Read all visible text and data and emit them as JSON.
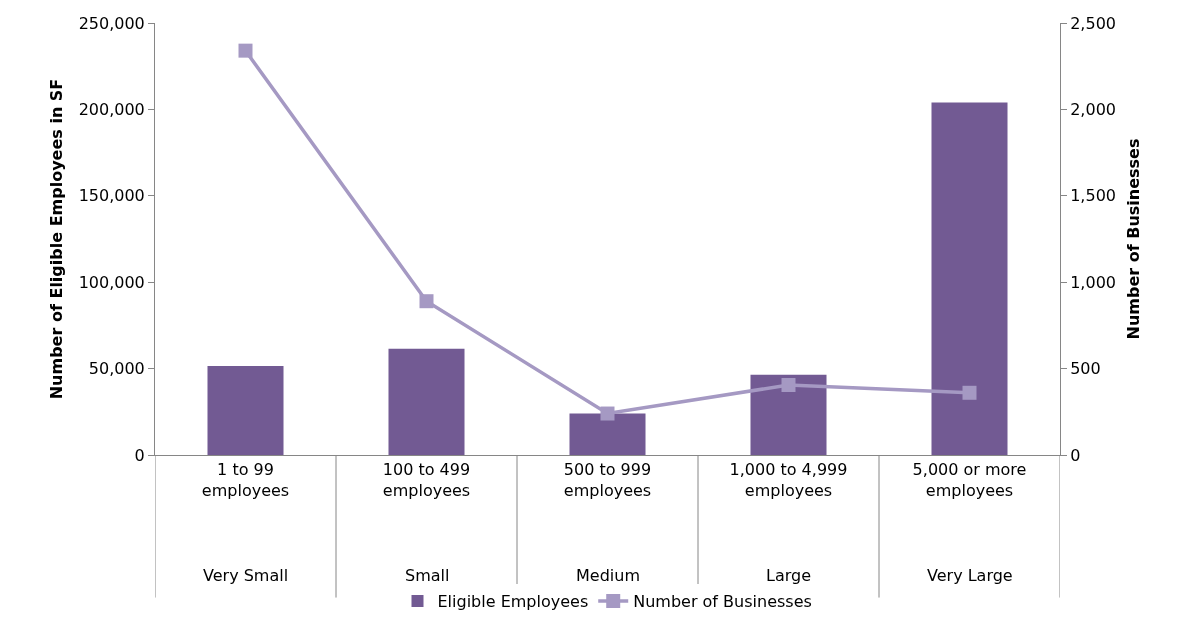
{
  "chart_data": {
    "type": "bar",
    "ylabel": "Number of Eligible Employees in SF",
    "y2label": "Number of Businesses",
    "categories": [
      "1 to 99 employees",
      "100 to 499 employees",
      "500 to 999 employees",
      "1,000 to 4,999 employees",
      "5,000 or more employees"
    ],
    "series": [
      {
        "name": "Eligible Employees",
        "color": "#725a93",
        "values": [
          51500,
          61500,
          24000,
          46500,
          204000
        ]
      },
      {
        "name": "Number of Businesses",
        "type": "line",
        "axis": "y2",
        "color": "#a599c3",
        "marker": "square",
        "values": [
          2340,
          890,
          240,
          405,
          360
        ]
      }
    ],
    "ylim": [
      0,
      250000
    ],
    "yticks": [
      {
        "value": 0,
        "label": "0"
      },
      {
        "value": 50000,
        "label": "50,000"
      },
      {
        "value": 100000,
        "label": "100,000"
      },
      {
        "value": 150000,
        "label": "150,000"
      },
      {
        "value": 200000,
        "label": "200,000"
      },
      {
        "value": 250000,
        "label": "250,000"
      }
    ],
    "y2lim": [
      0,
      2500
    ],
    "y2ticks": [
      {
        "value": 0,
        "label": "0"
      },
      {
        "value": 500,
        "label": "500"
      },
      {
        "value": 1000,
        "label": "1,000"
      },
      {
        "value": 1500,
        "label": "1,500"
      },
      {
        "value": 2000,
        "label": "2,000"
      },
      {
        "value": 2500,
        "label": "2,500"
      }
    ],
    "annotations": [
      "Very Small",
      "Small",
      "Medium",
      "Large",
      "Very Large"
    ],
    "grid": false,
    "legend": "bottom"
  }
}
